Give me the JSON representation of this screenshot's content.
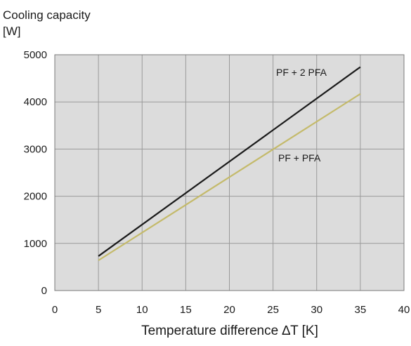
{
  "chart_data": {
    "type": "line",
    "ylabel_line1": "Cooling capacity",
    "ylabel_line2": "[W]",
    "xlabel": "Temperature difference ∆T [K]",
    "xlim": [
      0,
      40
    ],
    "ylim": [
      0,
      5000
    ],
    "xticks": [
      0,
      5,
      10,
      15,
      20,
      25,
      30,
      35,
      40
    ],
    "yticks": [
      0,
      1000,
      2000,
      3000,
      4000,
      5000
    ],
    "grid": true,
    "plot_background": "#dcdcdc",
    "grid_color": "#9a9a9a",
    "series": [
      {
        "name": "PF + 2 PFA",
        "color": "#1a1a1a",
        "x": [
          5,
          35
        ],
        "y": [
          730,
          4740
        ]
      },
      {
        "name": "PF + PFA",
        "color": "#c4ba6a",
        "x": [
          5,
          35
        ],
        "y": [
          640,
          4170
        ]
      }
    ]
  }
}
